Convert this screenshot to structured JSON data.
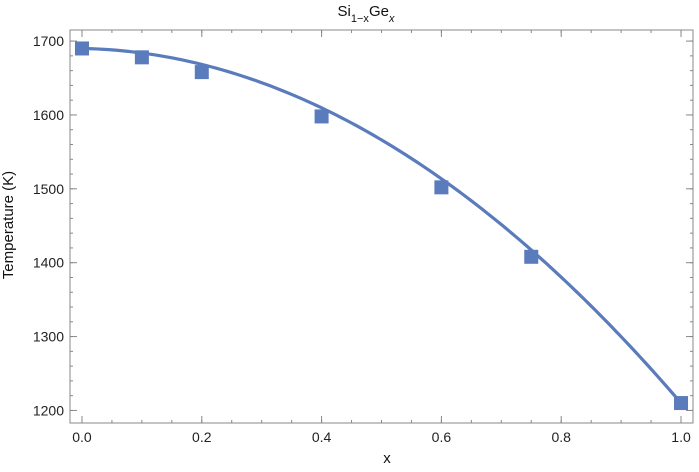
{
  "chart_data": {
    "type": "scatter",
    "title": {
      "base": "Si",
      "sub1": "1−x",
      "mid": "Ge",
      "sub2": "x"
    },
    "xlabel": "x",
    "ylabel": "Temperature (K)",
    "xlim": [
      -0.02,
      1.02
    ],
    "ylim": [
      1183,
      1715
    ],
    "x_ticks": [
      "0.0",
      "0.2",
      "0.4",
      "0.6",
      "0.8",
      "1.0"
    ],
    "y_ticks": [
      "1200",
      "1300",
      "1400",
      "1500",
      "1600",
      "1700"
    ],
    "x_minor_step": 0.05,
    "y_minor_step": 20,
    "grid": false,
    "color": "#5a7bbc",
    "series": [
      {
        "kind": "points",
        "marker": "square",
        "x": [
          0.0,
          0.1,
          0.2,
          0.4,
          0.6,
          0.75,
          1.0
        ],
        "y": [
          1690,
          1678,
          1658,
          1598,
          1502,
          1408,
          1210
        ]
      },
      {
        "kind": "curve",
        "fit": "quadratic",
        "x_range": [
          0.0,
          1.0
        ],
        "y_at_0": 1690,
        "y_at_1": 1210,
        "linear_coef": -15,
        "quadratic_coef": -465
      }
    ]
  }
}
